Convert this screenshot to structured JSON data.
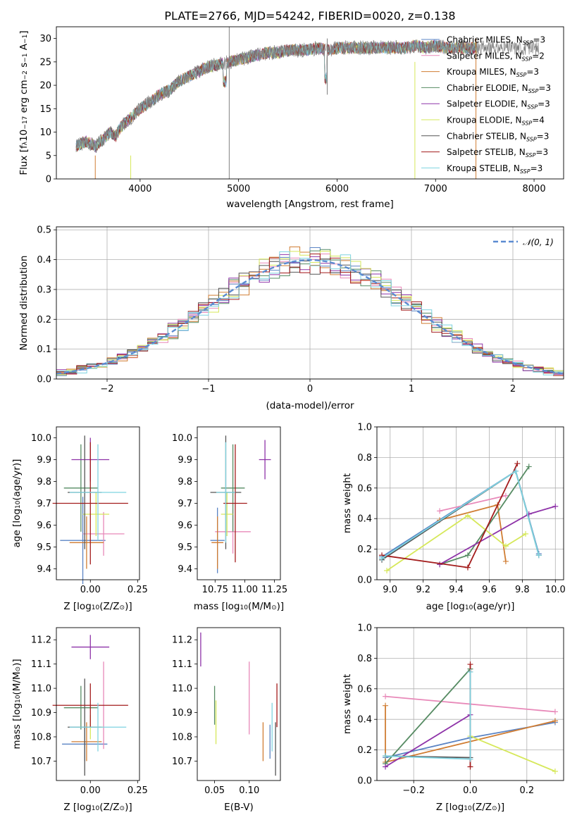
{
  "figure": {
    "title": "PLATE=2766, MJD=54242, FIBERID=0020, z=0.138"
  },
  "models": [
    {
      "name": "Chabrier MILES, N_SSP=3",
      "base": "Chabrier MILES, N",
      "sub": "SSP",
      "tail": "=3",
      "color": "#5b84c4"
    },
    {
      "name": "Salpeter MILES, N_SSP=2",
      "base": "Salpeter MILES, N",
      "sub": "SSP",
      "tail": "=2",
      "color": "#e889b9"
    },
    {
      "name": "Kroupa MILES, N_SSP=3",
      "base": "Kroupa MILES, N",
      "sub": "SSP",
      "tail": "=3",
      "color": "#d07d33"
    },
    {
      "name": "Chabrier ELODIE, N_SSP=3",
      "base": "Chabrier ELODIE, N",
      "sub": "SSP",
      "tail": "=3",
      "color": "#568b63"
    },
    {
      "name": "Salpeter ELODIE, N_SSP=3",
      "base": "Salpeter ELODIE, N",
      "sub": "SSP",
      "tail": "=3",
      "color": "#8e33a8"
    },
    {
      "name": "Kroupa ELODIE, N_SSP=4",
      "base": "Kroupa ELODIE, N",
      "sub": "SSP",
      "tail": "=4",
      "color": "#d6e85a"
    },
    {
      "name": "Chabrier STELIB, N_SSP=3",
      "base": "Chabrier STELIB, N",
      "sub": "SSP",
      "tail": "=3",
      "color": "#555555"
    },
    {
      "name": "Salpeter STELIB, N_SSP=3",
      "base": "Salpeter STELIB, N",
      "sub": "SSP",
      "tail": "=3",
      "color": "#a31c1c"
    },
    {
      "name": "Kroupa STELIB, N_SSP=3",
      "base": "Kroupa STELIB, N",
      "sub": "SSP",
      "tail": "=3",
      "color": "#7ed3e0"
    }
  ],
  "chart_data": [
    {
      "id": "spectrum",
      "type": "line",
      "xlabel": "wavelength [Angstrom, rest frame]",
      "ylabel_parts": [
        "Flux [f",
        "λ",
        "10",
        "−17",
        " erg cm",
        "−2",
        " s",
        "−1",
        " A",
        "−1",
        "]"
      ],
      "xlim": [
        3150,
        8300
      ],
      "ylim": [
        0,
        32.5
      ],
      "xticks": [
        4000,
        5000,
        6000,
        7000,
        8000
      ],
      "yticks": [
        0,
        5,
        10,
        15,
        20,
        25,
        30
      ],
      "x": [
        3350,
        3400,
        3450,
        3500,
        3550,
        3600,
        3650,
        3700,
        3750,
        3800,
        3850,
        3900,
        3950,
        4000,
        4100,
        4200,
        4300,
        4400,
        4500,
        4600,
        4700,
        4800,
        4900,
        5000,
        5100,
        5200,
        5300,
        5400,
        5500,
        5600,
        5700,
        5800,
        5900,
        6000,
        6100,
        6200,
        6300,
        6400,
        6500,
        6600,
        6700,
        6800,
        6900,
        7000,
        7100,
        7200,
        7300,
        7400
      ],
      "y": [
        7,
        7.5,
        8,
        7.5,
        7,
        8,
        9,
        10,
        9,
        11,
        12,
        13,
        14,
        15,
        16.5,
        18,
        19,
        21,
        22,
        23,
        24,
        24.5,
        25,
        25.5,
        26,
        26.5,
        27,
        27,
        27.5,
        27.5,
        27.5,
        28,
        27.5,
        28,
        28,
        28,
        28,
        28,
        28,
        28,
        28,
        28.5,
        28,
        28.5,
        28,
        28,
        28,
        28
      ]
    },
    {
      "id": "residual-histogram",
      "type": "histogram",
      "xlabel": "(data-model)/error",
      "ylabel": "Normed distribution",
      "xlim": [
        -2.5,
        2.5
      ],
      "ylim": [
        0,
        0.51
      ],
      "xticks": [
        -2,
        -1,
        0,
        1,
        2
      ],
      "yticks": [
        0.0,
        0.1,
        0.2,
        0.3,
        0.4,
        0.5
      ],
      "bin_width": 0.1,
      "reference_curve": {
        "label": "N(0,1)",
        "mean": 0,
        "sigma": 1
      }
    },
    {
      "id": "age-vs-Z",
      "type": "scatter",
      "xlabel_parts": [
        "Z [log",
        "10",
        "(Z/Z",
        "⊙",
        ")]"
      ],
      "ylabel_parts": [
        "age  [log",
        "10",
        "(age/yr)]"
      ],
      "xlim": [
        -0.18,
        0.26
      ],
      "ylim": [
        9.35,
        10.05
      ],
      "xticks": [
        0.0,
        0.25
      ],
      "yticks": [
        9.4,
        9.5,
        9.6,
        9.7,
        9.8,
        9.9,
        10.0
      ],
      "points": [
        {
          "m": 0,
          "x": -0.04,
          "y": 9.53,
          "xerr": 0.12,
          "yerr": 0.2
        },
        {
          "m": 1,
          "x": 0.07,
          "y": 9.56,
          "xerr": 0.11,
          "yerr": 0.1
        },
        {
          "m": 2,
          "x": -0.02,
          "y": 9.52,
          "xerr": 0.09,
          "yerr": 0.12
        },
        {
          "m": 3,
          "x": -0.05,
          "y": 9.77,
          "xerr": 0.09,
          "yerr": 0.2
        },
        {
          "m": 4,
          "x": 0.0,
          "y": 9.9,
          "xerr": 0.1,
          "yerr": 0.1
        },
        {
          "m": 5,
          "x": 0.03,
          "y": 9.65,
          "xerr": 0.07,
          "yerr": 0.1
        },
        {
          "m": 6,
          "x": -0.03,
          "y": 9.75,
          "xerr": 0.09,
          "yerr": 0.26
        },
        {
          "m": 7,
          "x": 0.0,
          "y": 9.7,
          "xerr": 0.2,
          "yerr": 0.28
        },
        {
          "m": 8,
          "x": 0.04,
          "y": 9.75,
          "xerr": 0.15,
          "yerr": 0.22
        }
      ]
    },
    {
      "id": "age-vs-mass",
      "type": "scatter",
      "xlabel_parts": [
        "mass [log",
        "10",
        "(M/M",
        "⊙",
        ")]"
      ],
      "ylabel_parts": [],
      "xlim": [
        10.6,
        11.3
      ],
      "ylim": [
        9.35,
        10.05
      ],
      "xticks": [
        10.75,
        11.0,
        11.25
      ],
      "yticks": [
        9.4,
        9.5,
        9.6,
        9.7,
        9.8,
        9.9,
        10.0
      ],
      "points": [
        {
          "m": 0,
          "x": 10.77,
          "y": 9.53,
          "xerr": 0.06,
          "yerr": 0.15
        },
        {
          "m": 1,
          "x": 10.9,
          "y": 9.57,
          "xerr": 0.15,
          "yerr": 0.1
        },
        {
          "m": 2,
          "x": 10.77,
          "y": 9.52,
          "xerr": 0.05,
          "yerr": 0.12
        },
        {
          "m": 3,
          "x": 10.9,
          "y": 9.77,
          "xerr": 0.1,
          "yerr": 0.2
        },
        {
          "m": 4,
          "x": 11.17,
          "y": 9.9,
          "xerr": 0.05,
          "yerr": 0.09
        },
        {
          "m": 5,
          "x": 10.85,
          "y": 9.65,
          "xerr": 0.05,
          "yerr": 0.1
        },
        {
          "m": 6,
          "x": 10.84,
          "y": 9.75,
          "xerr": 0.13,
          "yerr": 0.26
        },
        {
          "m": 7,
          "x": 10.92,
          "y": 9.7,
          "xerr": 0.1,
          "yerr": 0.27
        },
        {
          "m": 8,
          "x": 10.84,
          "y": 9.75,
          "xerr": 0.08,
          "yerr": 0.23
        }
      ]
    },
    {
      "id": "massweight-vs-age",
      "type": "line",
      "xlabel_parts": [
        "age  [log",
        "10",
        "(age/yr)]"
      ],
      "ylabel_parts": [
        "mass weight"
      ],
      "xlim": [
        8.92,
        10.05
      ],
      "ylim": [
        0,
        1
      ],
      "xticks": [
        9.0,
        9.2,
        9.4,
        9.6,
        9.8,
        10.0
      ],
      "yticks": [
        0.0,
        0.2,
        0.4,
        0.6,
        0.8,
        1.0
      ],
      "series": [
        {
          "m": 0,
          "x": [
            8.95,
            9.76,
            9.9
          ],
          "y": [
            0.15,
            0.71,
            0.17
          ]
        },
        {
          "m": 1,
          "x": [
            9.3,
            9.7
          ],
          "y": [
            0.45,
            0.55
          ]
        },
        {
          "m": 2,
          "x": [
            9.3,
            9.65,
            9.7
          ],
          "y": [
            0.39,
            0.49,
            0.12
          ]
        },
        {
          "m": 3,
          "x": [
            9.3,
            9.47,
            9.84
          ],
          "y": [
            0.1,
            0.16,
            0.74
          ]
        },
        {
          "m": 4,
          "x": [
            9.3,
            9.84,
            10.0
          ],
          "y": [
            0.1,
            0.43,
            0.48
          ]
        },
        {
          "m": 5,
          "x": [
            8.98,
            9.47,
            9.7,
            9.82
          ],
          "y": [
            0.06,
            0.42,
            0.22,
            0.3
          ]
        },
        {
          "m": 6,
          "x": [
            8.95,
            9.76,
            9.9
          ],
          "y": [
            0.13,
            0.71,
            0.16
          ]
        },
        {
          "m": 7,
          "x": [
            8.95,
            9.47,
            9.77
          ],
          "y": [
            0.16,
            0.08,
            0.76
          ]
        },
        {
          "m": 8,
          "x": [
            8.95,
            9.76,
            9.9
          ],
          "y": [
            0.14,
            0.71,
            0.16
          ]
        }
      ]
    },
    {
      "id": "mass-vs-Z",
      "type": "scatter",
      "xlabel_parts": [
        "Z [log",
        "10",
        "(Z/Z",
        "⊙",
        ")]"
      ],
      "ylabel_parts": [
        "mass [log",
        "10",
        "(M/M",
        "⊙",
        ")]"
      ],
      "xlim": [
        -0.18,
        0.26
      ],
      "ylim": [
        10.62,
        11.25
      ],
      "xticks": [
        0.0,
        0.25
      ],
      "yticks": [
        10.7,
        10.8,
        10.9,
        11.0,
        11.1,
        11.2
      ],
      "points": [
        {
          "m": 0,
          "x": -0.03,
          "y": 10.77,
          "xerr": 0.12,
          "yerr": 0.07
        },
        {
          "m": 1,
          "x": 0.07,
          "y": 10.93,
          "xerr": 0.0,
          "yerr": 0.18
        },
        {
          "m": 2,
          "x": -0.02,
          "y": 10.78,
          "xerr": 0.08,
          "yerr": 0.08
        },
        {
          "m": 3,
          "x": -0.05,
          "y": 10.92,
          "xerr": 0.09,
          "yerr": 0.09
        },
        {
          "m": 4,
          "x": 0.0,
          "y": 11.17,
          "xerr": 0.1,
          "yerr": 0.05
        },
        {
          "m": 5,
          "x": 0.0,
          "y": 10.84,
          "xerr": 0.07,
          "yerr": 0.05
        },
        {
          "m": 6,
          "x": -0.03,
          "y": 10.84,
          "xerr": 0.09,
          "yerr": 0.2
        },
        {
          "m": 7,
          "x": 0.0,
          "y": 10.93,
          "xerr": 0.2,
          "yerr": 0.09
        },
        {
          "m": 8,
          "x": 0.04,
          "y": 10.84,
          "xerr": 0.15,
          "yerr": 0.1
        }
      ]
    },
    {
      "id": "mass-vs-EBV",
      "type": "scatter",
      "xlabel_parts": [
        "E(B-V)"
      ],
      "ylabel_parts": [],
      "xlim": [
        0.025,
        0.145
      ],
      "ylim": [
        10.62,
        11.25
      ],
      "xticks": [
        0.05,
        0.1
      ],
      "yticks": [
        10.7,
        10.8,
        10.9,
        11.0,
        11.1,
        11.2
      ],
      "points": [
        {
          "m": 0,
          "x": 0.13,
          "y": 10.78,
          "xerr": 0,
          "yerr": 0.07
        },
        {
          "m": 1,
          "x": 0.1,
          "y": 10.96,
          "xerr": 0,
          "yerr": 0.15
        },
        {
          "m": 2,
          "x": 0.12,
          "y": 10.78,
          "xerr": 0,
          "yerr": 0.08
        },
        {
          "m": 3,
          "x": 0.05,
          "y": 10.93,
          "xerr": 0,
          "yerr": 0.08
        },
        {
          "m": 4,
          "x": 0.03,
          "y": 11.16,
          "xerr": 0,
          "yerr": 0.07
        },
        {
          "m": 5,
          "x": 0.052,
          "y": 10.86,
          "xerr": 0,
          "yerr": 0.09
        },
        {
          "m": 6,
          "x": 0.138,
          "y": 10.75,
          "xerr": 0,
          "yerr": 0.11
        },
        {
          "m": 7,
          "x": 0.14,
          "y": 10.93,
          "xerr": 0,
          "yerr": 0.09
        },
        {
          "m": 8,
          "x": 0.133,
          "y": 10.84,
          "xerr": 0,
          "yerr": 0.1
        }
      ]
    },
    {
      "id": "massweight-vs-Z",
      "type": "line",
      "xlabel_parts": [
        "Z [log",
        "10",
        "(Z/Z",
        "⊙",
        ")]"
      ],
      "ylabel_parts": [
        "mass weight"
      ],
      "xlim": [
        -0.33,
        0.33
      ],
      "ylim": [
        0,
        1
      ],
      "xticks": [
        -0.2,
        0.0,
        0.2
      ],
      "yticks": [
        0.0,
        0.2,
        0.4,
        0.6,
        0.8,
        1.0
      ],
      "series": [
        {
          "m": 0,
          "x": [
            -0.3,
            0.0,
            0.3
          ],
          "y": [
            0.15,
            0.28,
            0.38
          ]
        },
        {
          "m": 1,
          "x": [
            -0.3,
            0.3
          ],
          "y": [
            0.55,
            0.45
          ]
        },
        {
          "m": 2,
          "x": [
            -0.3,
            -0.3,
            0.3
          ],
          "y": [
            0.49,
            0.12,
            0.39
          ]
        },
        {
          "m": 3,
          "x": [
            -0.3,
            0.0
          ],
          "y": [
            0.11,
            0.73
          ]
        },
        {
          "m": 4,
          "x": [
            -0.3,
            0.0
          ],
          "y": [
            0.09,
            0.43
          ]
        },
        {
          "m": 5,
          "x": [
            0.0,
            0.3
          ],
          "y": [
            0.29,
            0.06
          ]
        },
        {
          "m": 6,
          "x": [
            -0.3,
            0.0,
            0.0
          ],
          "y": [
            0.16,
            0.15,
            0.71
          ]
        },
        {
          "m": 7,
          "x": [
            0.0,
            0.0
          ],
          "y": [
            0.09,
            0.76
          ]
        },
        {
          "m": 8,
          "x": [
            -0.3,
            0.0,
            0.0
          ],
          "y": [
            0.16,
            0.14,
            0.71
          ]
        }
      ]
    }
  ]
}
